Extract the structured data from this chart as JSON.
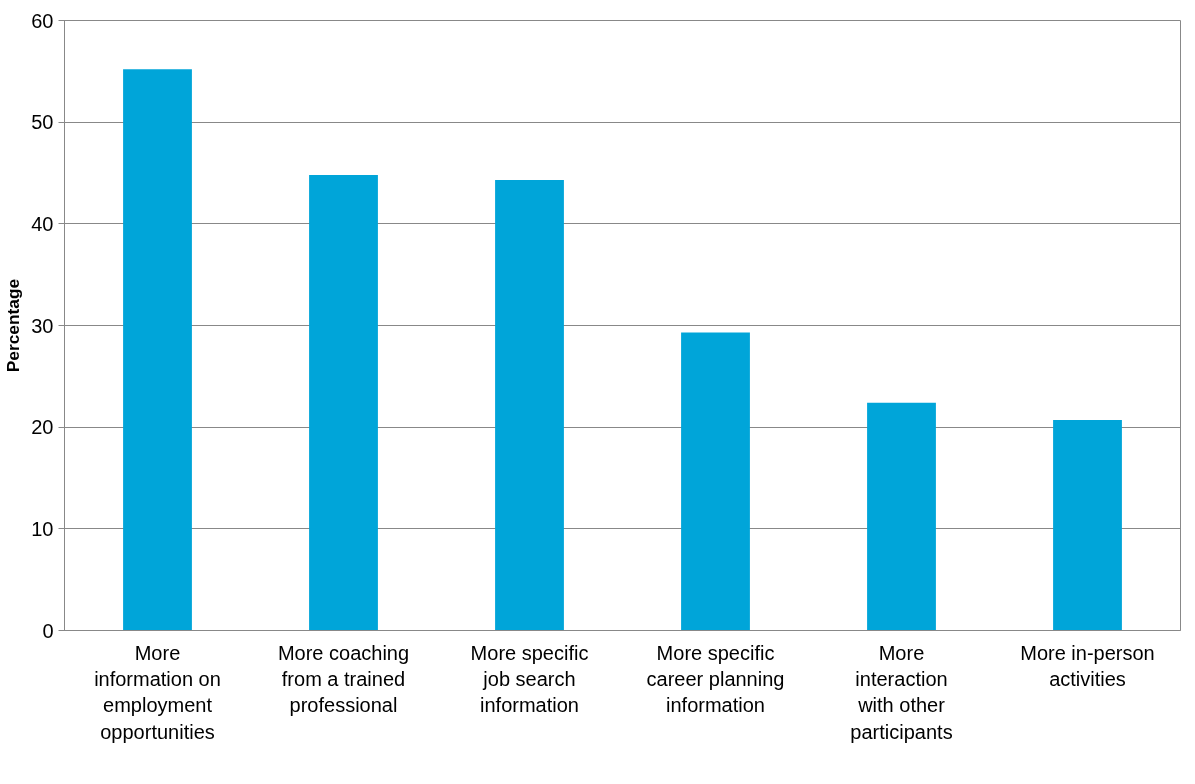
{
  "chart_data": {
    "type": "bar",
    "ylabel": "Percentage",
    "categories": [
      "More information on employment opportunities",
      "More coaching from a trained professional",
      "More specific job search information",
      "More specific career planning information",
      "More interaction with other participants",
      "More in-person activities"
    ],
    "values": [
      55.2,
      44.8,
      44.3,
      29.3,
      22.4,
      20.7
    ],
    "color": "#00a5d9",
    "ylim": [
      0,
      60
    ],
    "yticks": [
      0,
      10,
      20,
      30,
      40,
      50,
      60
    ],
    "grid": "y"
  }
}
